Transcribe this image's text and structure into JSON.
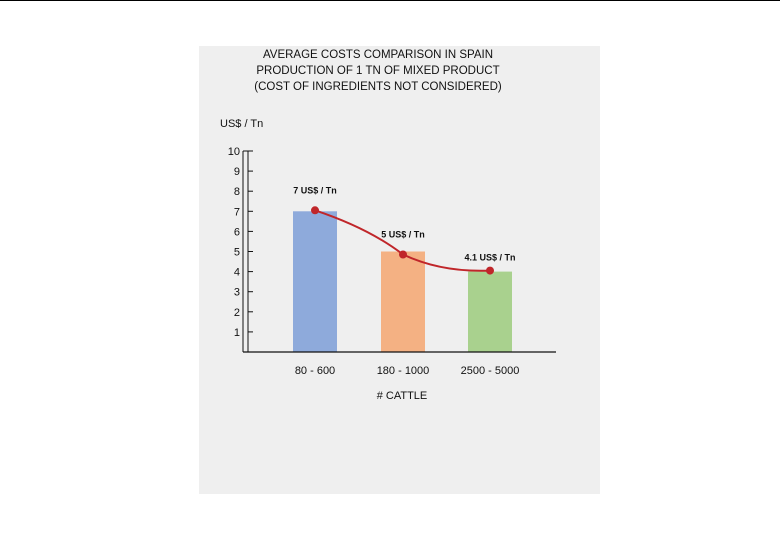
{
  "chart_data": {
    "type": "bar",
    "title_lines": [
      "AVERAGE COSTS COMPARISON IN SPAIN",
      "PRODUCTION OF 1 TN OF MIXED PRODUCT",
      "(COST OF INGREDIENTS NOT CONSIDERED)"
    ],
    "ylabel": "US$ / Tn",
    "xlabel": "# CATTLE",
    "categories": [
      "80 - 600",
      "180 - 1000",
      "2500 - 5000"
    ],
    "values": [
      7,
      5,
      4
    ],
    "bar_colors": [
      "#8eaadb",
      "#f4b183",
      "#a9d18e"
    ],
    "line": {
      "values": [
        7.05,
        4.85,
        4.05
      ],
      "color": "#c0262a",
      "labels": [
        "7 US$ / Tn",
        "5 US$ / Tn",
        "4.1 US$ / Tn"
      ]
    },
    "ylim": [
      0,
      10
    ],
    "yticks": [
      1,
      2,
      3,
      4,
      5,
      6,
      7,
      8,
      9,
      10
    ],
    "grid": false
  }
}
